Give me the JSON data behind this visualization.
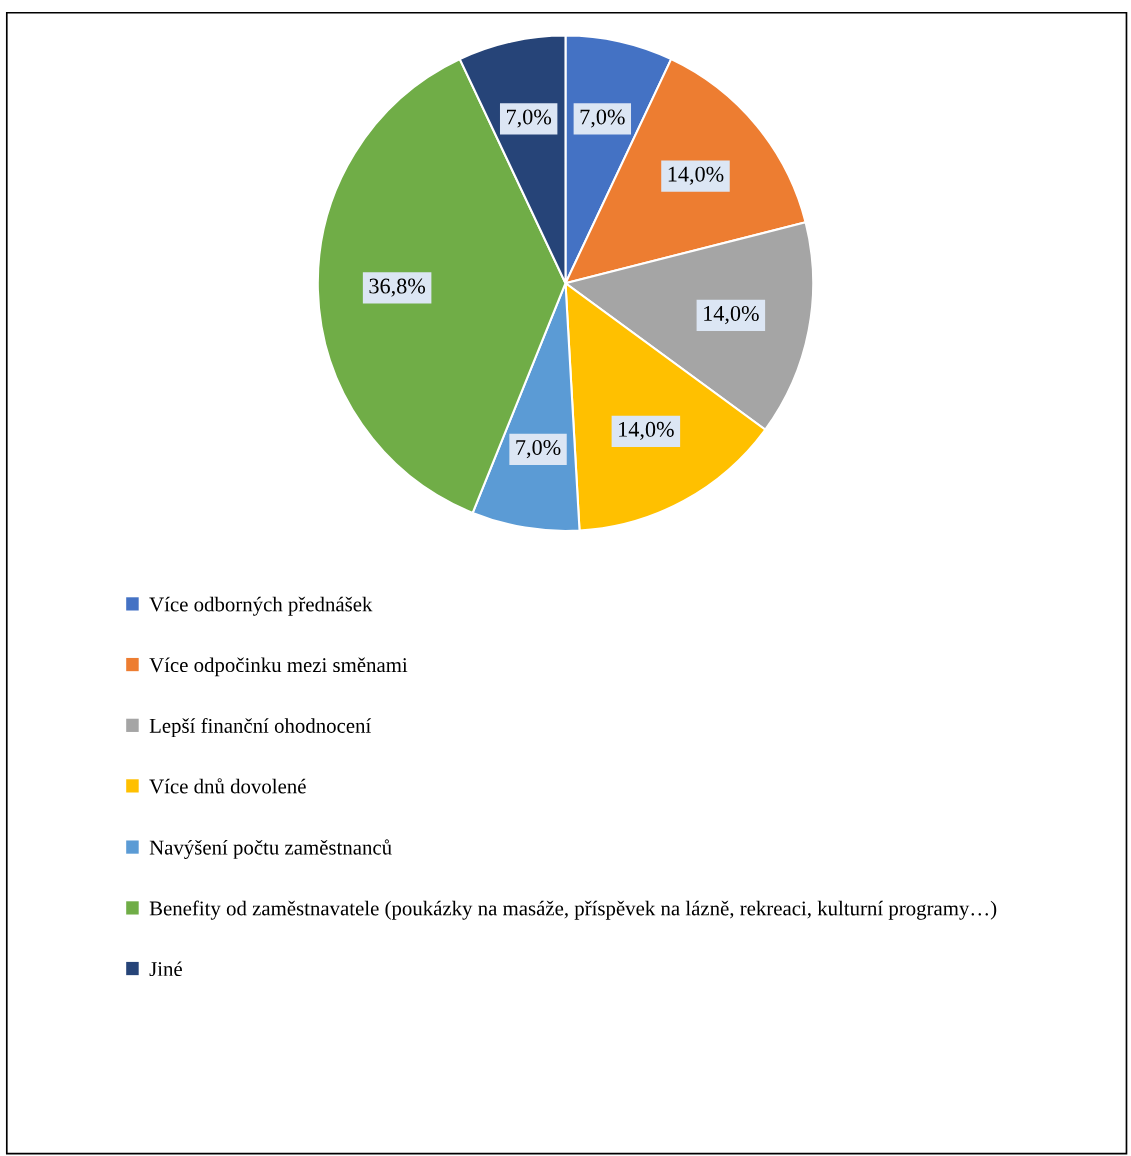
{
  "chart_data": {
    "type": "pie",
    "categories": [
      "Více odborných přednášek",
      "Více odpočinku mezi směnami",
      "Lepší finanční ohodnocení",
      "Více dnů dovolené",
      "Navýšení počtu zaměstnanců",
      "Benefity od zaměstnavatele (poukázky na masáže, příspěvek na lázně, rekreaci, kulturní programy…)",
      "Jiné"
    ],
    "values": [
      7.0,
      14.0,
      14.0,
      14.0,
      7.0,
      36.8,
      7.0
    ],
    "value_labels": [
      "7,0%",
      "14,0%",
      "14,0%",
      "14,0%",
      "7,0%",
      "36,8%",
      "7,0%"
    ],
    "colors": [
      "#4472c4",
      "#ed7d31",
      "#a5a5a5",
      "#ffc000",
      "#5b9bd5",
      "#70ad47",
      "#264478"
    ],
    "legend": "bottom"
  }
}
